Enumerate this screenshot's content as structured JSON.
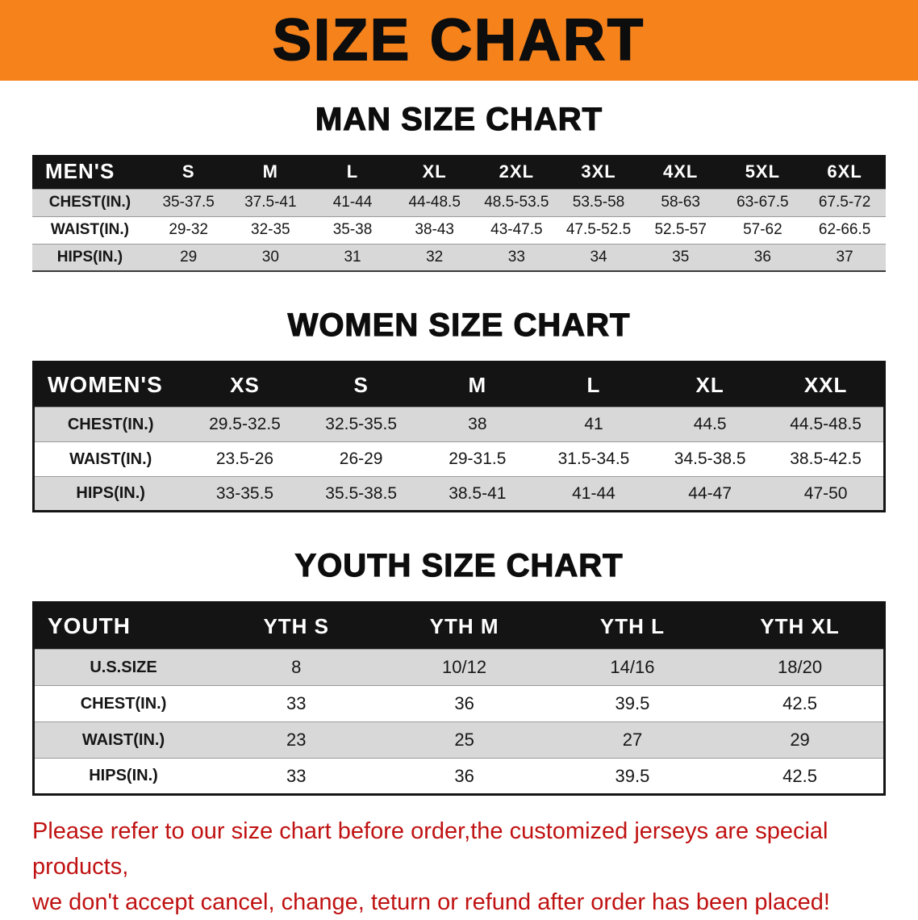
{
  "banner": {
    "title": "SIZE CHART"
  },
  "colors": {
    "banner_bg": "#f6821c",
    "table_header_bg": "#141414",
    "row_stripe_gray": "#d8d8d8",
    "disclaimer_red": "#c01212"
  },
  "sections": [
    {
      "id": "men",
      "heading": "MAN SIZE CHART",
      "table": {
        "label_header": "MEN'S",
        "columns": [
          "S",
          "M",
          "L",
          "XL",
          "2XL",
          "3XL",
          "4XL",
          "5XL",
          "6XL"
        ],
        "rows": [
          {
            "label": "CHEST(IN.)",
            "values": [
              "35-37.5",
              "37.5-41",
              "41-44",
              "44-48.5",
              "48.5-53.5",
              "53.5-58",
              "58-63",
              "63-67.5",
              "67.5-72"
            ]
          },
          {
            "label": "WAIST(IN.)",
            "values": [
              "29-32",
              "32-35",
              "35-38",
              "38-43",
              "43-47.5",
              "47.5-52.5",
              "52.5-57",
              "57-62",
              "62-66.5"
            ]
          },
          {
            "label": "HIPS(IN.)",
            "values": [
              "29",
              "30",
              "31",
              "32",
              "33",
              "34",
              "35",
              "36",
              "37"
            ]
          }
        ]
      }
    },
    {
      "id": "women",
      "heading": "WOMEN SIZE CHART",
      "table": {
        "label_header": "WOMEN'S",
        "columns": [
          "XS",
          "S",
          "M",
          "L",
          "XL",
          "XXL"
        ],
        "rows": [
          {
            "label": "CHEST(IN.)",
            "values": [
              "29.5-32.5",
              "32.5-35.5",
              "38",
              "41",
              "44.5",
              "44.5-48.5"
            ]
          },
          {
            "label": "WAIST(IN.)",
            "values": [
              "23.5-26",
              "26-29",
              "29-31.5",
              "31.5-34.5",
              "34.5-38.5",
              "38.5-42.5"
            ]
          },
          {
            "label": "HIPS(IN.)",
            "values": [
              "33-35.5",
              "35.5-38.5",
              "38.5-41",
              "41-44",
              "44-47",
              "47-50"
            ]
          }
        ]
      }
    },
    {
      "id": "youth",
      "heading": "YOUTH SIZE CHART",
      "table": {
        "label_header": "YOUTH",
        "columns": [
          "YTH S",
          "YTH M",
          "YTH L",
          "YTH XL"
        ],
        "rows": [
          {
            "label": "U.S.SIZE",
            "values": [
              "8",
              "10/12",
              "14/16",
              "18/20"
            ]
          },
          {
            "label": "CHEST(IN.)",
            "values": [
              "33",
              "36",
              "39.5",
              "42.5"
            ]
          },
          {
            "label": "WAIST(IN.)",
            "values": [
              "23",
              "25",
              "27",
              "29"
            ]
          },
          {
            "label": "HIPS(IN.)",
            "values": [
              "33",
              "36",
              "39.5",
              "42.5"
            ]
          }
        ]
      }
    }
  ],
  "footer": {
    "line1": "Please refer to our size chart before order,the customized jerseys are special products,",
    "line2": "we don't accept cancel, change, teturn or refund after order has been placed!"
  }
}
